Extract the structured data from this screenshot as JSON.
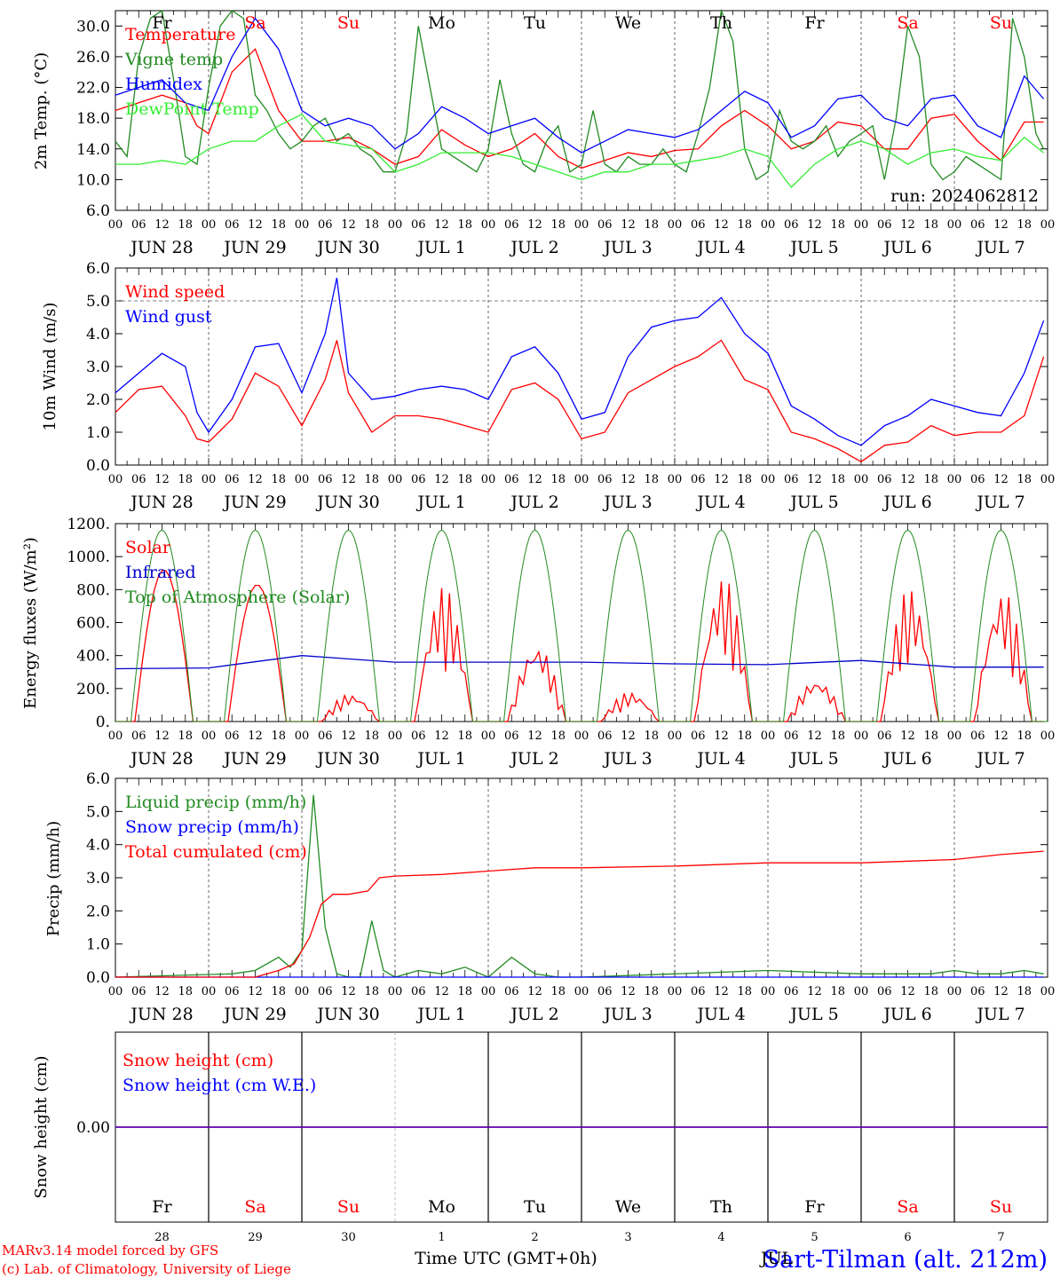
{
  "days": {
    "names": [
      "Fr",
      "Sa",
      "Su",
      "Mo",
      "Tu",
      "We",
      "Th",
      "Fr",
      "Sa",
      "Su"
    ],
    "weekend_flags": [
      false,
      true,
      true,
      false,
      false,
      false,
      false,
      false,
      true,
      true
    ],
    "dates": [
      "JUN 28",
      "JUN 29",
      "JUN 30",
      "JUL 1",
      "JUL 2",
      "JUL 3",
      "JUL 4",
      "JUL 5",
      "JUL 6",
      "JUL 7"
    ],
    "numbers": [
      "28",
      "29",
      "30",
      "1",
      "2",
      "3",
      "4",
      "5",
      "6",
      "7"
    ],
    "hour_ticks": [
      "00",
      "06",
      "12",
      "18"
    ],
    "end_tick": "00"
  },
  "colors": {
    "red": "#ff0000",
    "green": "#228b22",
    "blue": "#0000ff",
    "lightgreen": "#33ee33",
    "navy": "#0000cc"
  },
  "footer": {
    "model": "MARv3.14 model forced by GFS",
    "lab": "(c) Lab. of Climatology, University of Liege",
    "xlabel": "Time UTC (GMT+0h)",
    "station": "Sart-Tilman (alt. 212m)",
    "overlay": "JUL"
  },
  "chart_data": [
    {
      "type": "line",
      "ylabel": "2m Temp. (°C)",
      "ylim": [
        6,
        32
      ],
      "yticks": [
        "6.0",
        "10.0",
        "14.0",
        "18.0",
        "22.0",
        "26.0",
        "30.0"
      ],
      "annotation": "run: 2024062812",
      "legend_placement": "top-left",
      "x_unit": "hours since JUN 28 00 UTC",
      "series": [
        {
          "name": "Temperature",
          "color": "red",
          "x": [
            0,
            6,
            12,
            18,
            21,
            24,
            30,
            36,
            42,
            48,
            54,
            60,
            66,
            72,
            78,
            84,
            90,
            96,
            102,
            108,
            114,
            120,
            126,
            132,
            138,
            144,
            150,
            156,
            162,
            168,
            174,
            180,
            186,
            192,
            198,
            204,
            210,
            216,
            222,
            228,
            234,
            239
          ],
          "y": [
            19,
            20,
            21,
            20,
            17,
            16,
            24,
            27,
            19,
            15,
            15,
            15.5,
            14,
            12,
            13,
            16.5,
            14.5,
            13,
            14,
            16,
            13,
            11.5,
            12.5,
            13.5,
            13,
            13.8,
            14,
            17,
            19,
            17,
            14,
            15,
            17.5,
            17,
            14,
            14,
            18,
            18.5,
            15,
            12.5,
            17.5,
            17.5
          ]
        },
        {
          "name": "Vigne temp",
          "color": "green",
          "x": [
            0,
            3,
            6,
            9,
            12,
            15,
            18,
            21,
            24,
            27,
            30,
            33,
            36,
            39,
            42,
            45,
            48,
            51,
            54,
            57,
            60,
            63,
            66,
            69,
            72,
            75,
            78,
            81,
            84,
            87,
            90,
            93,
            96,
            99,
            102,
            105,
            108,
            111,
            114,
            117,
            120,
            123,
            126,
            129,
            132,
            135,
            138,
            141,
            144,
            147,
            150,
            153,
            156,
            159,
            162,
            165,
            168,
            171,
            174,
            177,
            180,
            183,
            186,
            189,
            192,
            195,
            198,
            201,
            204,
            207,
            210,
            213,
            216,
            219,
            222,
            225,
            228,
            231,
            234,
            237,
            239
          ],
          "y": [
            15,
            13,
            26,
            31,
            32,
            23,
            13,
            12,
            22,
            30,
            32,
            31,
            21,
            19,
            16,
            14,
            15,
            17,
            18,
            15,
            16,
            14,
            13,
            11,
            11,
            16,
            30,
            22,
            14,
            13,
            12,
            11,
            14,
            23,
            16,
            12,
            11,
            15,
            17,
            11,
            12,
            19,
            12,
            11,
            13,
            12,
            12,
            14,
            12,
            11,
            16,
            22,
            32,
            28,
            14,
            10,
            11,
            19,
            15,
            14,
            15,
            17,
            13,
            15,
            16,
            17,
            10,
            18,
            30,
            26,
            12,
            10,
            11,
            13,
            12,
            11,
            10,
            31,
            26,
            16,
            14
          ]
        },
        {
          "name": "Humidex",
          "color": "blue",
          "x": [
            0,
            6,
            12,
            18,
            24,
            30,
            36,
            42,
            48,
            54,
            60,
            66,
            72,
            78,
            84,
            90,
            96,
            102,
            108,
            114,
            120,
            126,
            132,
            138,
            144,
            150,
            156,
            162,
            168,
            174,
            180,
            186,
            192,
            198,
            204,
            210,
            216,
            222,
            228,
            234,
            239
          ],
          "y": [
            21,
            22,
            23,
            20,
            19,
            26,
            31,
            27,
            19,
            17,
            18,
            17,
            14,
            16,
            19.5,
            18,
            16,
            17,
            18,
            15.5,
            13.5,
            15,
            16.5,
            16,
            15.5,
            16.5,
            19,
            21.5,
            20,
            15.5,
            17,
            20.5,
            21,
            18,
            17,
            20.5,
            21,
            17,
            15.5,
            23.5,
            20.5
          ]
        },
        {
          "name": "DewPoint Temp",
          "color": "lightgreen",
          "x": [
            0,
            6,
            12,
            18,
            24,
            30,
            36,
            42,
            48,
            54,
            60,
            66,
            72,
            78,
            84,
            90,
            96,
            102,
            108,
            114,
            120,
            126,
            132,
            138,
            144,
            150,
            156,
            162,
            168,
            174,
            180,
            186,
            192,
            198,
            204,
            210,
            216,
            222,
            228,
            234,
            239
          ],
          "y": [
            12,
            12,
            12.5,
            12,
            14,
            15,
            15,
            17,
            18.5,
            15,
            14.5,
            14,
            11,
            12,
            13.5,
            13.5,
            13.5,
            13,
            12,
            11,
            10,
            11,
            11,
            12,
            12,
            12.5,
            13,
            14,
            13,
            9,
            12,
            14,
            15,
            14,
            12,
            13.5,
            14,
            13,
            12.5,
            15.5,
            13.5
          ]
        }
      ]
    },
    {
      "type": "line",
      "ylabel": "10m Wind (m/s)",
      "ylim": [
        0,
        6
      ],
      "yticks": [
        "0.0",
        "1.0",
        "2.0",
        "3.0",
        "4.0",
        "5.0",
        "6.0"
      ],
      "reference_line": 5,
      "legend_placement": "top-left",
      "x_unit": "hours since JUN 28 00 UTC",
      "series": [
        {
          "name": "Wind speed",
          "color": "red",
          "x": [
            0,
            6,
            12,
            18,
            21,
            24,
            30,
            36,
            42,
            48,
            54,
            57,
            60,
            66,
            72,
            78,
            84,
            90,
            96,
            102,
            108,
            114,
            120,
            126,
            132,
            138,
            144,
            150,
            156,
            162,
            168,
            174,
            180,
            186,
            192,
            198,
            204,
            210,
            216,
            222,
            228,
            234,
            239
          ],
          "y": [
            1.6,
            2.3,
            2.4,
            1.5,
            0.8,
            0.7,
            1.4,
            2.8,
            2.4,
            1.2,
            2.6,
            3.8,
            2.2,
            1.0,
            1.5,
            1.5,
            1.4,
            1.2,
            1.0,
            2.3,
            2.5,
            2.0,
            0.8,
            1.0,
            2.2,
            2.6,
            3.0,
            3.3,
            3.8,
            2.6,
            2.3,
            1.0,
            0.8,
            0.5,
            0.1,
            0.6,
            0.7,
            1.2,
            0.9,
            1.0,
            1.0,
            1.5,
            3.3
          ]
        },
        {
          "name": "Wind gust",
          "color": "blue",
          "x": [
            0,
            6,
            12,
            18,
            21,
            24,
            30,
            36,
            42,
            48,
            54,
            57,
            60,
            66,
            72,
            78,
            84,
            90,
            96,
            102,
            108,
            114,
            120,
            126,
            132,
            138,
            144,
            150,
            156,
            162,
            168,
            174,
            180,
            186,
            192,
            198,
            204,
            210,
            216,
            222,
            228,
            234,
            239
          ],
          "y": [
            2.2,
            2.8,
            3.4,
            3.0,
            1.6,
            1.0,
            2.0,
            3.6,
            3.7,
            2.2,
            4.0,
            5.7,
            2.8,
            2.0,
            2.1,
            2.3,
            2.4,
            2.3,
            2.0,
            3.3,
            3.6,
            2.8,
            1.4,
            1.6,
            3.3,
            4.2,
            4.4,
            4.5,
            5.1,
            4.0,
            3.4,
            1.8,
            1.4,
            0.9,
            0.6,
            1.2,
            1.5,
            2.0,
            1.8,
            1.6,
            1.5,
            2.8,
            4.4
          ]
        }
      ]
    },
    {
      "type": "line",
      "ylabel": "Energy fluxes (W/m²)",
      "ylim": [
        0,
        1200
      ],
      "yticks": [
        "0.",
        "200.",
        "400.",
        "600.",
        "800.",
        "1000.",
        "1200."
      ],
      "legend_placement": "top-left",
      "x_unit": "hours since JUN 28 00 UTC",
      "series": [
        {
          "name": "Solar",
          "color": "red",
          "daily_peak": [
            920,
            830,
            170,
            820,
            480,
            180,
            880,
            260,
            810,
            800
          ]
        },
        {
          "name": "Infrared",
          "color": "navy",
          "x": [
            0,
            24,
            48,
            72,
            96,
            120,
            144,
            168,
            192,
            216,
            239
          ],
          "y": [
            320,
            325,
            400,
            360,
            360,
            360,
            350,
            345,
            370,
            330,
            330
          ]
        },
        {
          "name": "Top of Atmosphere (Solar)",
          "color": "green",
          "peak": 1160,
          "sunrise_hour": 4,
          "sunset_hour": 20
        }
      ]
    },
    {
      "type": "line",
      "ylabel": "Precip (mm/h)",
      "ylim": [
        0,
        6
      ],
      "yticks": [
        "0.0",
        "1.0",
        "2.0",
        "3.0",
        "4.0",
        "5.0",
        "6.0"
      ],
      "legend_placement": "top-left",
      "x_unit": "hours since JUN 28 00 UTC",
      "series": [
        {
          "name": "Liquid precip (mm/h)",
          "color": "green",
          "x": [
            0,
            30,
            36,
            42,
            45,
            48,
            51,
            54,
            57,
            60,
            63,
            66,
            69,
            72,
            78,
            84,
            90,
            96,
            102,
            108,
            114,
            120,
            144,
            168,
            192,
            210,
            216,
            222,
            228,
            234,
            239
          ],
          "y": [
            0,
            0.1,
            0.2,
            0.6,
            0.3,
            0.8,
            5.5,
            1.5,
            0.1,
            0,
            0,
            1.7,
            0.2,
            0,
            0.2,
            0.1,
            0.3,
            0,
            0.6,
            0.1,
            0,
            0,
            0.1,
            0.2,
            0.1,
            0.1,
            0.2,
            0.1,
            0.1,
            0.2,
            0.1
          ]
        },
        {
          "name": "Snow precip (mm/h)",
          "color": "blue",
          "x": [
            0,
            239
          ],
          "y": [
            0,
            0
          ]
        },
        {
          "name": "Total cumulated (cm)",
          "color": "red",
          "x": [
            0,
            36,
            42,
            46,
            50,
            53,
            56,
            60,
            65,
            68,
            72,
            84,
            96,
            108,
            120,
            144,
            168,
            192,
            216,
            228,
            239
          ],
          "y": [
            0,
            0,
            0.2,
            0.4,
            1.2,
            2.2,
            2.5,
            2.5,
            2.6,
            3.0,
            3.05,
            3.1,
            3.2,
            3.3,
            3.3,
            3.35,
            3.45,
            3.45,
            3.55,
            3.7,
            3.8
          ]
        }
      ]
    },
    {
      "type": "line",
      "ylabel": "Snow height (cm)",
      "yticks": [
        "0.00"
      ],
      "legend_placement": "top-left",
      "x_unit": "hours since JUN 28 00 UTC",
      "series": [
        {
          "name": "Snow height (cm)",
          "color": "red",
          "x": [
            0,
            239
          ],
          "y": [
            0,
            0
          ]
        },
        {
          "name": "Snow height (cm W.E.)",
          "color": "blue",
          "x": [
            0,
            239
          ],
          "y": [
            0,
            0
          ]
        }
      ]
    }
  ]
}
